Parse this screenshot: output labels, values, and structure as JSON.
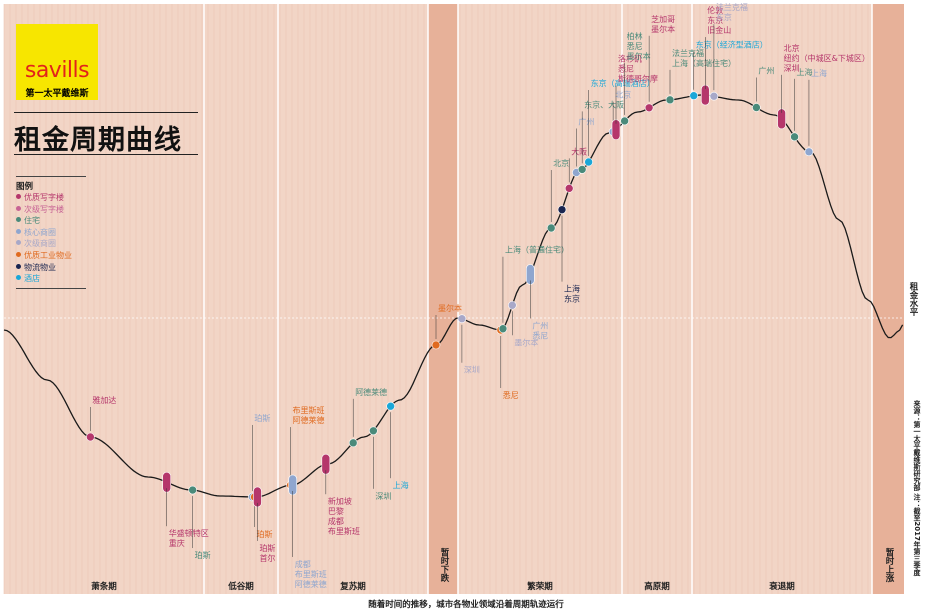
{
  "brand": {
    "logo_text": "savills",
    "logo_sub": "第一太平戴维斯"
  },
  "title": "租金周期曲线",
  "legend": {
    "title": "图例",
    "items": [
      {
        "label": "优质写字楼",
        "color": "#b5366b"
      },
      {
        "label": "次级写字楼",
        "color": "#c76394"
      },
      {
        "label": "住宅",
        "color": "#4a8a7a"
      },
      {
        "label": "核心商圈",
        "color": "#8fa6cf"
      },
      {
        "label": "次级商圈",
        "color": "#a8a8c8"
      },
      {
        "label": "优质工业物业",
        "color": "#e06a1f"
      },
      {
        "label": "物流物业",
        "color": "#1a2550"
      },
      {
        "label": "酒店",
        "color": "#1aa7d8"
      }
    ]
  },
  "rent_level_label": "租金水平",
  "footer": "随着时间的推移，城市各物业领域沿着周期轨迹运行",
  "right_note": "来源：第一太平戴维斯研究部  注：截至2017年第三季度",
  "colors": {
    "background": "#f2d5c6",
    "band": "#e7b199",
    "grid": "#ffffff",
    "curve": "#1a1a1a"
  },
  "chart_data": {
    "type": "line",
    "phases": [
      {
        "label": "萧条期"
      },
      {
        "label": "低谷期"
      },
      {
        "label": "复苏期"
      },
      {
        "label": "暂时下跌",
        "band": true
      },
      {
        "label": "繁荣期"
      },
      {
        "label": "高原期"
      },
      {
        "label": "衰退期"
      },
      {
        "label": "暂时上涨",
        "band": true
      }
    ],
    "markers": [
      {
        "pos": 0.12,
        "type": "office-prime",
        "labels": [
          "雅加达"
        ],
        "color": "#b5366b"
      },
      {
        "pos": 0.226,
        "type": "office-prime",
        "labels": [
          "华盛顿特区",
          "重庆"
        ],
        "color": "#b5366b",
        "pill": true
      },
      {
        "pos": 0.262,
        "type": "residential",
        "labels": [
          "珀斯"
        ],
        "color": "#4a8a7a"
      },
      {
        "pos": 0.345,
        "type": "retail",
        "labels": [
          "珀斯"
        ],
        "color": "#8fa6cf"
      },
      {
        "pos": 0.348,
        "type": "industrial",
        "labels": [
          "珀斯"
        ],
        "color": "#e06a1f"
      },
      {
        "pos": 0.352,
        "type": "office-prime",
        "labels": [
          "珀斯",
          "首尔"
        ],
        "color": "#b5366b",
        "pill": true
      },
      {
        "pos": 0.398,
        "type": "industrial",
        "labels": [
          "布里斯班",
          "阿德莱德"
        ],
        "color": "#e06a1f"
      },
      {
        "pos": 0.401,
        "type": "retail",
        "labels": [
          "成都",
          "布里斯班",
          "阿德莱德"
        ],
        "color": "#8fa6cf",
        "pill": true
      },
      {
        "pos": 0.447,
        "type": "office-prime",
        "labels": [
          "新加坡",
          "巴黎",
          "成都",
          "布里斯班"
        ],
        "color": "#b5366b",
        "pill": true
      },
      {
        "pos": 0.485,
        "type": "residential",
        "labels": [
          "阿德莱德"
        ],
        "color": "#4a8a7a"
      },
      {
        "pos": 0.513,
        "type": "residential",
        "labels": [
          "深圳"
        ],
        "color": "#4a8a7a"
      },
      {
        "pos": 0.537,
        "type": "hotel",
        "labels": [
          "上海"
        ],
        "color": "#1aa7d8"
      },
      {
        "pos": 0.6,
        "type": "industrial",
        "labels": [
          "墨尔本"
        ],
        "color": "#e06a1f"
      },
      {
        "pos": 0.636,
        "type": "retail-sec",
        "labels": [
          "深圳"
        ],
        "color": "#a8a8c8"
      },
      {
        "pos": 0.69,
        "type": "industrial",
        "labels": [
          "悉尼"
        ],
        "color": "#e06a1f"
      },
      {
        "pos": 0.693,
        "type": "residential",
        "labels": [
          "上海（普通住宅）"
        ],
        "color": "#4a8a7a"
      },
      {
        "pos": 0.706,
        "type": "retail",
        "labels": [
          "墨尔本"
        ],
        "color": "#a8a8c8"
      },
      {
        "pos": 0.731,
        "type": "retail",
        "labels": [
          "广州",
          "悉尼"
        ],
        "color": "#8fa6cf",
        "pill": true
      },
      {
        "pos": 0.76,
        "type": "residential",
        "labels": [
          "北京"
        ],
        "color": "#4a8a7a"
      },
      {
        "pos": 0.775,
        "type": "logistics",
        "labels": [
          "上海",
          "东京"
        ],
        "color": "#1a2550"
      },
      {
        "pos": 0.785,
        "type": "office-prime",
        "labels": [
          "大阪"
        ],
        "color": "#b5366b"
      },
      {
        "pos": 0.795,
        "type": "retail",
        "labels": [
          "广州"
        ],
        "color": "#8fa6cf"
      },
      {
        "pos": 0.803,
        "type": "residential",
        "labels": [
          "东京、大阪"
        ],
        "color": "#4a8a7a"
      },
      {
        "pos": 0.812,
        "type": "hotel",
        "labels": [
          "东京（高端酒店）"
        ],
        "color": "#1aa7d8"
      },
      {
        "pos": 0.846,
        "type": "retail",
        "labels": [
          "北京"
        ],
        "color": "#8fa6cf"
      },
      {
        "pos": 0.85,
        "type": "office-prime",
        "labels": [
          "洛杉矶",
          "悉尼",
          "斯德哥尔摩"
        ],
        "color": "#b5366b",
        "pill": true
      },
      {
        "pos": 0.862,
        "type": "residential",
        "labels": [
          "柏林",
          "悉尼",
          "墨尔本"
        ],
        "color": "#4a8a7a"
      },
      {
        "pos": 0.896,
        "type": "office-prime",
        "labels": [
          "芝加哥",
          "墨尔本"
        ],
        "color": "#b5366b"
      },
      {
        "pos": 0.925,
        "type": "residential",
        "labels": [
          "法兰克福",
          "上海（高端住宅）"
        ],
        "color": "#4a8a7a"
      },
      {
        "pos": 0.958,
        "type": "hotel",
        "labels": [
          "东京（经济型酒店）"
        ],
        "color": "#1aa7d8"
      },
      {
        "pos": 0.974,
        "type": "office-prime",
        "labels": [
          "伦敦",
          "东京",
          "旧金山"
        ],
        "color": "#b5366b",
        "pill": true
      },
      {
        "pos": 0.986,
        "type": "retail-sec",
        "labels": [
          "法兰克福",
          "东京"
        ],
        "color": "#a8a8c8"
      },
      {
        "pos": 1.045,
        "type": "residential",
        "labels": [
          "广州"
        ],
        "color": "#4a8a7a"
      },
      {
        "pos": 1.08,
        "type": "office-prime",
        "labels": [
          "北京",
          "纽约（中城区&下城区）",
          "深圳"
        ],
        "color": "#b5366b",
        "pill": true
      },
      {
        "pos": 1.098,
        "type": "residential",
        "labels": [
          "上海"
        ],
        "color": "#4a8a7a"
      },
      {
        "pos": 1.118,
        "type": "retail",
        "labels": [
          "上海"
        ],
        "color": "#8fa6cf"
      }
    ]
  }
}
